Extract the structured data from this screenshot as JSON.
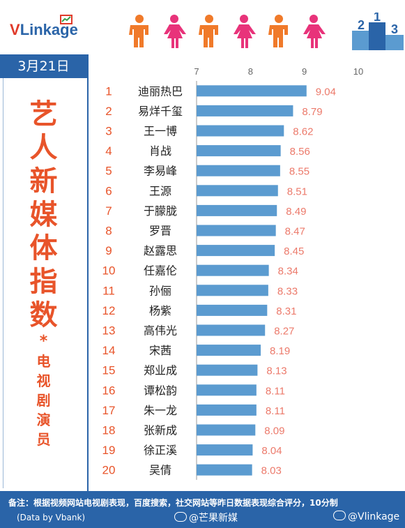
{
  "brand": {
    "logo_v": "V",
    "logo_rest": "Linkage"
  },
  "date": "3月21日",
  "side_title": {
    "main": [
      "艺",
      "人",
      "新",
      "媒",
      "体",
      "指",
      "数"
    ],
    "star": "*",
    "sub": [
      "电",
      "视",
      "剧",
      "演",
      "员"
    ]
  },
  "colors": {
    "bar": "#5b9bd0",
    "rank": "#e8542a",
    "value": "#ec7a6b",
    "brand_blue": "#2a64a8"
  },
  "chart_data": {
    "type": "bar",
    "orientation": "horizontal",
    "xlim": [
      7,
      10
    ],
    "ticks": [
      7,
      8,
      9,
      10
    ],
    "ranks": [
      "1",
      "2",
      "3",
      "4",
      "5",
      "6",
      "7",
      "8",
      "9",
      "10",
      "11",
      "12",
      "13",
      "14",
      "15",
      "16",
      "17",
      "18",
      "19",
      "20"
    ],
    "categories": [
      "迪丽热巴",
      "易烊千玺",
      "王一博",
      "肖战",
      "李易峰",
      "王源",
      "于朦胧",
      "罗晋",
      "赵露思",
      "任嘉伦",
      "孙俪",
      "杨紫",
      "高伟光",
      "宋茜",
      "郑业成",
      "谭松韵",
      "朱一龙",
      "张新成",
      "徐正溪",
      "吴倩"
    ],
    "values": [
      9.04,
      8.79,
      8.62,
      8.56,
      8.55,
      8.51,
      8.49,
      8.47,
      8.45,
      8.34,
      8.33,
      8.31,
      8.27,
      8.19,
      8.13,
      8.11,
      8.11,
      8.09,
      8.04,
      8.03
    ],
    "value_labels": [
      "9.04",
      "8.79",
      "8.62",
      "8.56",
      "8.55",
      "8.51",
      "8.49",
      "8.47",
      "8.45",
      "8.34",
      "8.33",
      "8.31",
      "8.27",
      "8.19",
      "8.13",
      "8.11",
      "8.11",
      "8.09",
      "8.04",
      "8.03"
    ]
  },
  "footer": {
    "note": "备注：根据视频网站电视剧表现，百度搜索，社交网站等昨日数据表现综合评分，10分制",
    "source": "(Data by Vbank)",
    "handle1": "@芒果新媒",
    "handle2": "@Vlinkage"
  }
}
